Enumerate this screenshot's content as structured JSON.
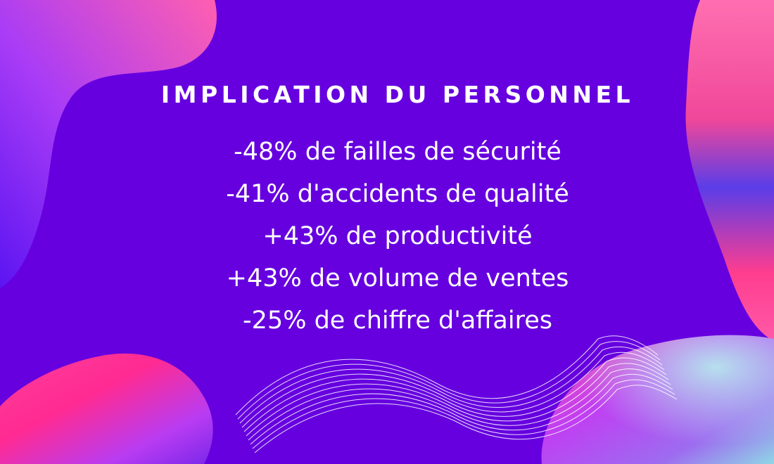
{
  "heading": "IMPLICATION DU PERSONNEL",
  "stats": [
    "-48% de failles de sécurité",
    "-41% d'accidents de qualité",
    "+43% de productivité",
    "+43% de volume de ventes",
    "-25% de chiffre d'affaires"
  ],
  "colors": {
    "background": "#6600df",
    "text": "#ffffff",
    "blob_pink": "#ff3fa6",
    "blob_magenta": "#c23bf0",
    "blob_blue": "#5a2bf2"
  }
}
